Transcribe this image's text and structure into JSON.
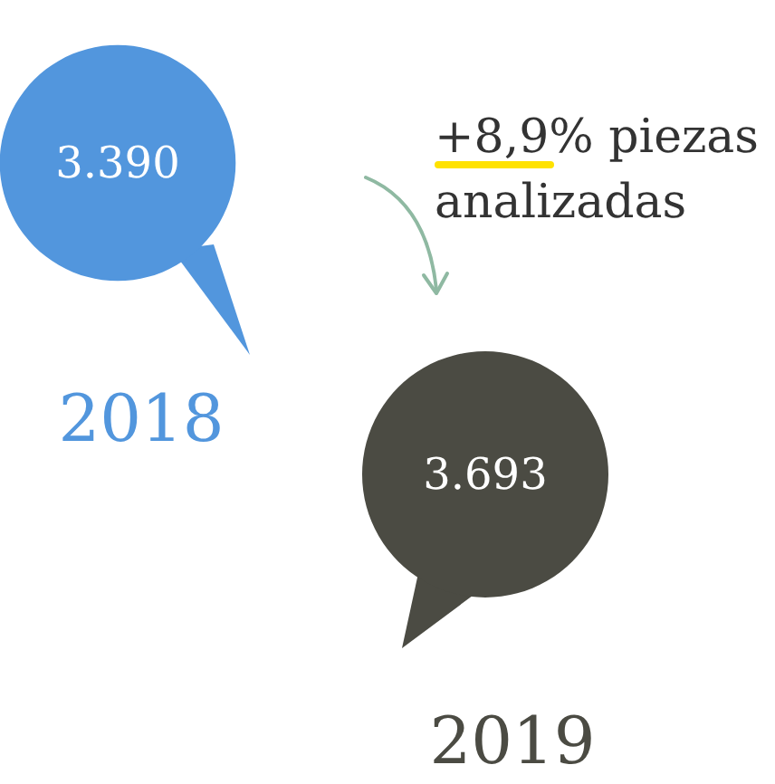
{
  "chart_data": {
    "type": "other",
    "categories": [
      "2018",
      "2019"
    ],
    "values": [
      3390,
      3693
    ],
    "value_labels": [
      "3.390",
      "3.693"
    ],
    "colors": [
      "#5296dd",
      "#4b4b43"
    ],
    "annotations": [
      "+8,9% piezas analizadas"
    ]
  }
}
